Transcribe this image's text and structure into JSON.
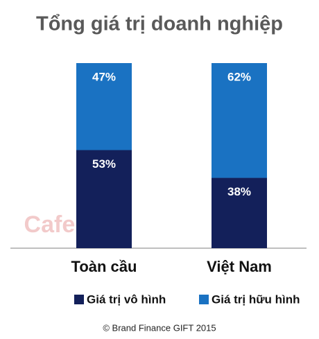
{
  "chart_data": {
    "type": "stacked-bar",
    "title": "Tổng giá trị doanh nghiệp",
    "categories": [
      "Toàn cầu",
      "Việt Nam"
    ],
    "series": [
      {
        "name": "Giá trị vô hình",
        "color": "#13205a",
        "values": [
          53,
          38
        ],
        "value_labels": [
          "53%",
          "38%"
        ]
      },
      {
        "name": "Giá trị hữu hình",
        "color": "#1a72c2",
        "values": [
          47,
          62
        ],
        "value_labels": [
          "47%",
          "62%"
        ]
      }
    ],
    "watermark": "Cafebiz",
    "source": "© Brand Finance GIFT 2015"
  }
}
